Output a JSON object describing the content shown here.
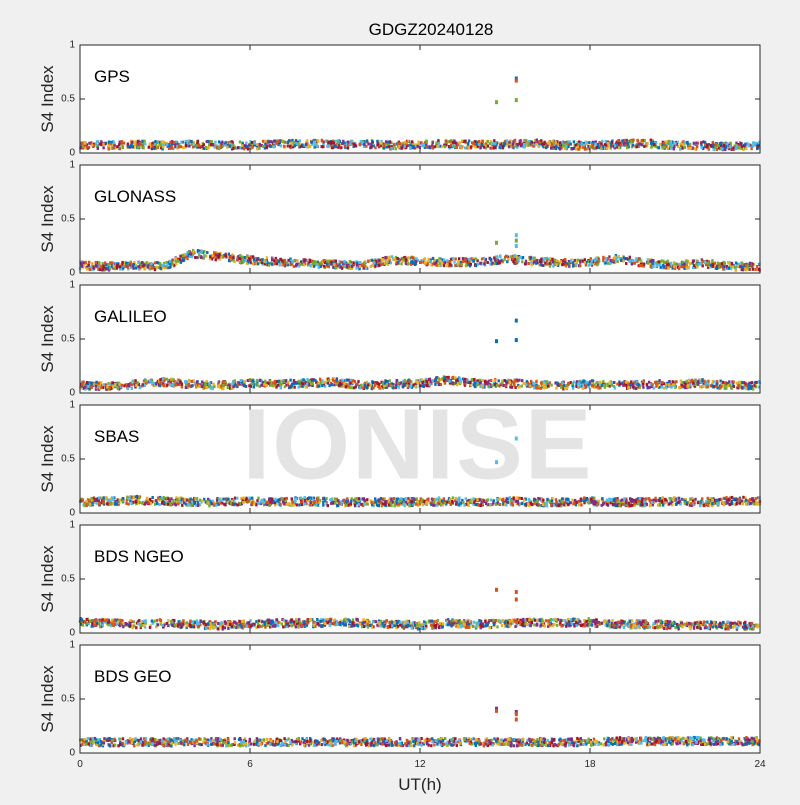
{
  "watermark": "IONISE",
  "colors": {
    "palette": [
      "#0072BD",
      "#D95319",
      "#EDB120",
      "#7E2F8E",
      "#77AC30",
      "#4DBEEE",
      "#A2142F"
    ]
  },
  "chart_data": {
    "type": "scatter",
    "title": "GDGZ20240128",
    "xlabel": "UT(h)",
    "ylabel": "S4 Index",
    "xlim": [
      0,
      24
    ],
    "xticks": [
      0,
      6,
      12,
      18,
      24
    ],
    "ylim": [
      0,
      1
    ],
    "yticks": [
      0,
      0.5,
      1
    ],
    "grid": false,
    "panels": [
      {
        "name": "GPS",
        "baseline": [
          [
            0,
            0.08
          ],
          [
            1,
            0.07
          ],
          [
            2,
            0.08
          ],
          [
            3,
            0.07
          ],
          [
            4,
            0.08
          ],
          [
            5,
            0.07
          ],
          [
            6,
            0.07
          ],
          [
            7,
            0.08
          ],
          [
            8,
            0.09
          ],
          [
            9,
            0.08
          ],
          [
            10,
            0.08
          ],
          [
            11,
            0.07
          ],
          [
            12,
            0.08
          ],
          [
            13,
            0.08
          ],
          [
            14,
            0.08
          ],
          [
            15,
            0.08
          ],
          [
            16,
            0.09
          ],
          [
            17,
            0.07
          ],
          [
            18,
            0.07
          ],
          [
            19,
            0.08
          ],
          [
            20,
            0.09
          ],
          [
            21,
            0.07
          ],
          [
            22,
            0.07
          ],
          [
            23,
            0.06
          ],
          [
            24,
            0.07
          ]
        ],
        "points": [
          {
            "x": 14.7,
            "y": 0.47,
            "color": "#77AC30"
          },
          {
            "x": 15.4,
            "y": 0.69,
            "color": "#0072BD"
          },
          {
            "x": 15.4,
            "y": 0.67,
            "color": "#D95319"
          },
          {
            "x": 15.4,
            "y": 0.49,
            "color": "#77AC30"
          }
        ]
      },
      {
        "name": "GLONASS",
        "baseline": [
          [
            0,
            0.07
          ],
          [
            1,
            0.06
          ],
          [
            2,
            0.07
          ],
          [
            3,
            0.06
          ],
          [
            4,
            0.18
          ],
          [
            5,
            0.15
          ],
          [
            6,
            0.12
          ],
          [
            7,
            0.1
          ],
          [
            8,
            0.09
          ],
          [
            9,
            0.08
          ],
          [
            10,
            0.07
          ],
          [
            11,
            0.12
          ],
          [
            12,
            0.11
          ],
          [
            13,
            0.1
          ],
          [
            14,
            0.1
          ],
          [
            15,
            0.13
          ],
          [
            16,
            0.11
          ],
          [
            17,
            0.09
          ],
          [
            18,
            0.1
          ],
          [
            19,
            0.13
          ],
          [
            20,
            0.09
          ],
          [
            21,
            0.07
          ],
          [
            22,
            0.09
          ],
          [
            23,
            0.06
          ],
          [
            24,
            0.06
          ]
        ],
        "points": [
          {
            "x": 14.7,
            "y": 0.28,
            "color": "#77AC30"
          },
          {
            "x": 15.4,
            "y": 0.35,
            "color": "#4DBEEE"
          },
          {
            "x": 15.4,
            "y": 0.3,
            "color": "#77AC30"
          },
          {
            "x": 15.4,
            "y": 0.25,
            "color": "#4DBEEE"
          }
        ]
      },
      {
        "name": "GALILEO",
        "baseline": [
          [
            0,
            0.07
          ],
          [
            1,
            0.06
          ],
          [
            2,
            0.08
          ],
          [
            3,
            0.1
          ],
          [
            4,
            0.08
          ],
          [
            5,
            0.07
          ],
          [
            6,
            0.09
          ],
          [
            7,
            0.08
          ],
          [
            8,
            0.09
          ],
          [
            9,
            0.1
          ],
          [
            10,
            0.07
          ],
          [
            11,
            0.08
          ],
          [
            12,
            0.09
          ],
          [
            13,
            0.12
          ],
          [
            14,
            0.09
          ],
          [
            15,
            0.09
          ],
          [
            16,
            0.08
          ],
          [
            17,
            0.07
          ],
          [
            18,
            0.08
          ],
          [
            19,
            0.07
          ],
          [
            20,
            0.08
          ],
          [
            21,
            0.08
          ],
          [
            22,
            0.09
          ],
          [
            23,
            0.07
          ],
          [
            24,
            0.07
          ]
        ],
        "points": [
          {
            "x": 14.7,
            "y": 0.48,
            "color": "#0072BD"
          },
          {
            "x": 15.4,
            "y": 0.67,
            "color": "#0072BD"
          },
          {
            "x": 15.4,
            "y": 0.49,
            "color": "#0072BD"
          }
        ]
      },
      {
        "name": "SBAS",
        "baseline": [
          [
            0,
            0.1
          ],
          [
            1,
            0.11
          ],
          [
            2,
            0.12
          ],
          [
            3,
            0.11
          ],
          [
            4,
            0.1
          ],
          [
            5,
            0.1
          ],
          [
            6,
            0.11
          ],
          [
            7,
            0.1
          ],
          [
            8,
            0.11
          ],
          [
            9,
            0.1
          ],
          [
            10,
            0.1
          ],
          [
            11,
            0.1
          ],
          [
            12,
            0.1
          ],
          [
            13,
            0.11
          ],
          [
            14,
            0.1
          ],
          [
            15,
            0.11
          ],
          [
            16,
            0.1
          ],
          [
            17,
            0.1
          ],
          [
            18,
            0.11
          ],
          [
            19,
            0.1
          ],
          [
            20,
            0.1
          ],
          [
            21,
            0.11
          ],
          [
            22,
            0.1
          ],
          [
            23,
            0.11
          ],
          [
            24,
            0.11
          ]
        ],
        "points": [
          {
            "x": 14.7,
            "y": 0.47,
            "color": "#4DBEEE"
          },
          {
            "x": 15.4,
            "y": 0.69,
            "color": "#4DBEEE"
          }
        ]
      },
      {
        "name": "BDS NGEO",
        "baseline": [
          [
            0,
            0.1
          ],
          [
            1,
            0.09
          ],
          [
            2,
            0.08
          ],
          [
            3,
            0.09
          ],
          [
            4,
            0.08
          ],
          [
            5,
            0.07
          ],
          [
            6,
            0.08
          ],
          [
            7,
            0.09
          ],
          [
            8,
            0.09
          ],
          [
            9,
            0.1
          ],
          [
            10,
            0.09
          ],
          [
            11,
            0.08
          ],
          [
            12,
            0.07
          ],
          [
            13,
            0.09
          ],
          [
            14,
            0.08
          ],
          [
            15,
            0.09
          ],
          [
            16,
            0.1
          ],
          [
            17,
            0.09
          ],
          [
            18,
            0.1
          ],
          [
            19,
            0.08
          ],
          [
            20,
            0.08
          ],
          [
            21,
            0.07
          ],
          [
            22,
            0.07
          ],
          [
            23,
            0.07
          ],
          [
            24,
            0.06
          ]
        ],
        "points": [
          {
            "x": 14.7,
            "y": 0.4,
            "color": "#D95319"
          },
          {
            "x": 15.4,
            "y": 0.38,
            "color": "#D95319"
          },
          {
            "x": 15.4,
            "y": 0.31,
            "color": "#D95319"
          }
        ]
      },
      {
        "name": "BDS GEO",
        "baseline": [
          [
            0,
            0.1
          ],
          [
            1,
            0.1
          ],
          [
            2,
            0.1
          ],
          [
            3,
            0.1
          ],
          [
            4,
            0.1
          ],
          [
            5,
            0.1
          ],
          [
            6,
            0.1
          ],
          [
            7,
            0.1
          ],
          [
            8,
            0.1
          ],
          [
            9,
            0.1
          ],
          [
            10,
            0.1
          ],
          [
            11,
            0.1
          ],
          [
            12,
            0.1
          ],
          [
            13,
            0.1
          ],
          [
            14,
            0.1
          ],
          [
            15,
            0.1
          ],
          [
            16,
            0.1
          ],
          [
            17,
            0.1
          ],
          [
            18,
            0.1
          ],
          [
            19,
            0.11
          ],
          [
            20,
            0.11
          ],
          [
            21,
            0.11
          ],
          [
            22,
            0.11
          ],
          [
            23,
            0.11
          ],
          [
            24,
            0.11
          ]
        ],
        "points": [
          {
            "x": 14.7,
            "y": 0.41,
            "color": "#7E2F8E"
          },
          {
            "x": 14.7,
            "y": 0.39,
            "color": "#D95319"
          },
          {
            "x": 15.4,
            "y": 0.38,
            "color": "#7E2F8E"
          },
          {
            "x": 15.4,
            "y": 0.36,
            "color": "#D95319"
          },
          {
            "x": 15.4,
            "y": 0.31,
            "color": "#D95319"
          }
        ]
      }
    ]
  }
}
